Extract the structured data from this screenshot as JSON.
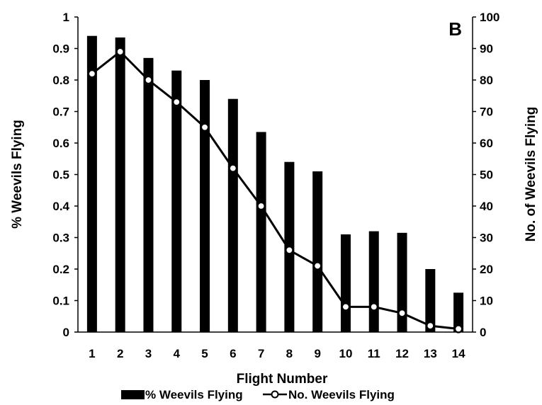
{
  "chart_data": {
    "type": "bar",
    "panel_label": "B",
    "xlabel": "Flight Number",
    "ylabel_left": "% Weevils Flying",
    "ylabel_right": "No. of Weevils Flying",
    "ylim_left": [
      0,
      1
    ],
    "ylim_right": [
      0,
      100
    ],
    "left_ticks": [
      "0",
      "0.1",
      "0.2",
      "0.3",
      "0.4",
      "0.5",
      "0.6",
      "0.7",
      "0.8",
      "0.9",
      "1"
    ],
    "right_ticks": [
      "0",
      "10",
      "20",
      "30",
      "40",
      "50",
      "60",
      "70",
      "80",
      "90",
      "100"
    ],
    "categories": [
      "1",
      "2",
      "3",
      "4",
      "5",
      "6",
      "7",
      "8",
      "9",
      "10",
      "11",
      "12",
      "13",
      "14"
    ],
    "series": [
      {
        "name": "% Weevils Flying",
        "type": "bar",
        "axis": "left",
        "color": "#000000",
        "values": [
          0.94,
          0.935,
          0.87,
          0.83,
          0.8,
          0.74,
          0.635,
          0.54,
          0.51,
          0.31,
          0.32,
          0.315,
          0.2,
          0.125
        ]
      },
      {
        "name": "No. Weevils Flying",
        "type": "line",
        "axis": "right",
        "color": "#000000",
        "marker": "open-circle",
        "values": [
          82,
          89,
          80,
          73,
          65,
          52,
          40,
          26,
          21,
          8,
          8,
          6,
          2,
          1
        ]
      }
    ],
    "legend_position": "bottom",
    "grid": false
  }
}
